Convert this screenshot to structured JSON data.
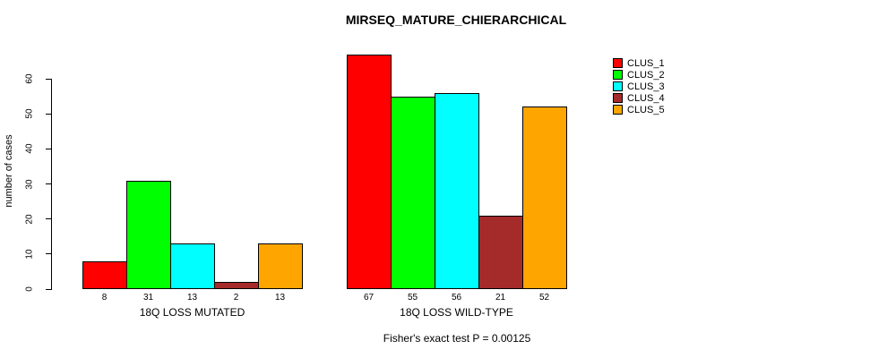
{
  "chart_data": {
    "type": "bar",
    "title": "MIRSEQ_MATURE_CHIERARCHICAL",
    "ylabel": "number of cases",
    "xlabel": "",
    "subtitle": "Fisher's exact test P = 0.00125",
    "ylim": [
      0,
      67
    ],
    "yticks": [
      0,
      10,
      20,
      30,
      40,
      50,
      60
    ],
    "grid": false,
    "legend_position": "top-right",
    "bar_value_labels_shown": true,
    "categories": [
      "18Q LOSS MUTATED",
      "18Q LOSS WILD-TYPE"
    ],
    "series": [
      {
        "name": "CLUS_1",
        "color": "#ff0000",
        "values": [
          8,
          67
        ]
      },
      {
        "name": "CLUS_2",
        "color": "#00ff00",
        "values": [
          31,
          55
        ]
      },
      {
        "name": "CLUS_3",
        "color": "#00ffff",
        "values": [
          13,
          56
        ]
      },
      {
        "name": "CLUS_4",
        "color": "#a52a2a",
        "values": [
          2,
          21
        ]
      },
      {
        "name": "CLUS_5",
        "color": "#ffa500",
        "values": [
          13,
          52
        ]
      }
    ]
  }
}
